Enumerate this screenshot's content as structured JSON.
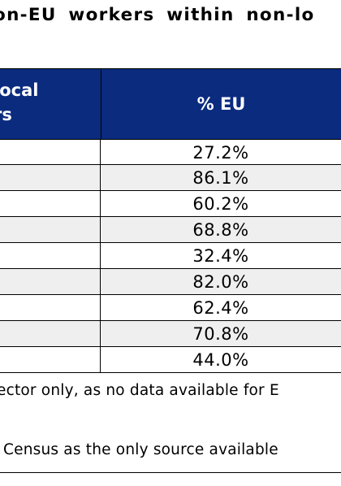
{
  "title": "on-EU workers within non-lo",
  "table": {
    "header": {
      "left": "local\nrs",
      "right": "% EU"
    },
    "rows": [
      {
        "value": "27.2%"
      },
      {
        "value": "86.1%"
      },
      {
        "value": "60.2%"
      },
      {
        "value": "68.8%"
      },
      {
        "value": "32.4%"
      },
      {
        "value": "82.0%"
      },
      {
        "value": "62.4%"
      },
      {
        "value": "70.8%"
      },
      {
        "value": "44.0%"
      }
    ]
  },
  "notes": {
    "line1": "ector only, as no data available for E",
    "line2": "Census as the only source available"
  },
  "colors": {
    "header_bg": "#0a2b7e",
    "alt_row_bg": "#efefef"
  }
}
